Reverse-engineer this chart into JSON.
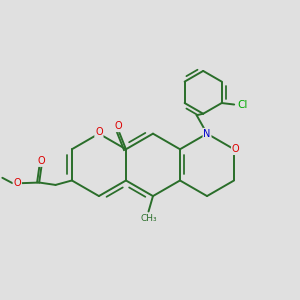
{
  "bg_color": "#e0e0e0",
  "bond_color": "#2a6e2a",
  "bond_width": 1.4,
  "atom_colors": {
    "O": "#dd0000",
    "N": "#0000cc",
    "Cl": "#00aa00",
    "C": "#2a6e2a"
  },
  "font_size": 7.0,
  "ring_r": 0.95
}
